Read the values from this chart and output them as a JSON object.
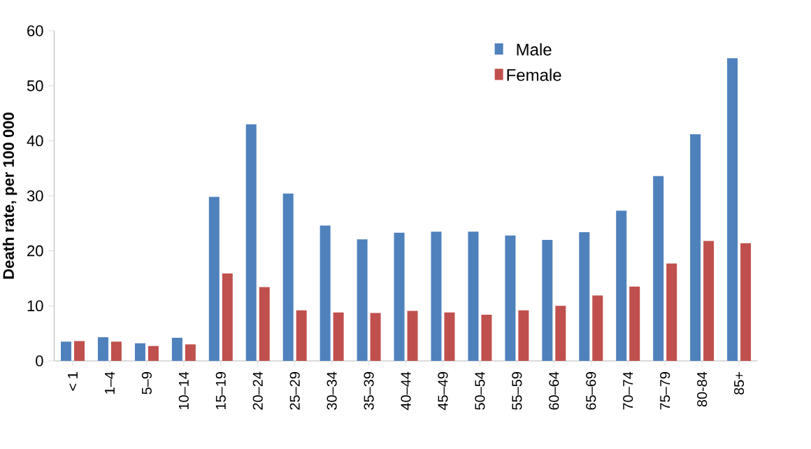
{
  "chart_data": {
    "type": "bar",
    "ylabel": "Death rate, per 100 000",
    "categories": [
      "< 1",
      "1–4",
      "5–9",
      "10–14",
      "15–19",
      "20–24",
      "25–29",
      "30–34",
      "35–39",
      "40–44",
      "45–49",
      "50–54",
      "55–59",
      "60–64",
      "65–69",
      "70–74",
      "75–79",
      "80-84",
      "85+"
    ],
    "series": [
      {
        "name": "Male",
        "color": "#4f81bd",
        "values": [
          3.5,
          4.3,
          3.2,
          4.2,
          29.8,
          43,
          30.4,
          24.6,
          22.1,
          23.3,
          23.5,
          23.5,
          22.8,
          22,
          23.4,
          27.3,
          33.6,
          41.2,
          55
        ]
      },
      {
        "name": "Female",
        "color": "#c0504d",
        "values": [
          3.6,
          3.5,
          2.7,
          3.0,
          15.9,
          13.4,
          9.2,
          8.8,
          8.7,
          9.1,
          8.8,
          8.4,
          9.2,
          10,
          11.9,
          13.5,
          17.7,
          21.8,
          21.4
        ]
      }
    ],
    "ylim": [
      0,
      60
    ],
    "yticks": [
      0,
      10,
      20,
      30,
      40,
      50,
      60
    ],
    "grid": false,
    "legend": "top right"
  }
}
